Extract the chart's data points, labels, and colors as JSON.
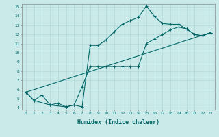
{
  "xlabel": "Humidex (Indice chaleur)",
  "bg_color": "#caeaea",
  "line_color": "#006666",
  "grid_color": "#b0d8d8",
  "xlim": [
    -0.5,
    23.5
  ],
  "ylim": [
    3.8,
    15.3
  ],
  "yticks": [
    4,
    5,
    6,
    7,
    8,
    9,
    10,
    11,
    12,
    13,
    14,
    15
  ],
  "xticks": [
    0,
    1,
    2,
    3,
    4,
    5,
    6,
    7,
    8,
    9,
    10,
    11,
    12,
    13,
    14,
    15,
    16,
    17,
    18,
    19,
    20,
    21,
    22,
    23
  ],
  "line1_x": [
    0,
    1,
    2,
    3,
    4,
    5,
    6,
    7,
    8,
    9,
    10,
    11,
    12,
    13,
    14,
    15,
    16,
    17,
    18,
    19,
    20,
    21,
    22,
    23
  ],
  "line1_y": [
    5.7,
    4.8,
    5.4,
    4.3,
    4.5,
    4.1,
    4.3,
    4.1,
    10.8,
    10.8,
    11.4,
    12.3,
    13.1,
    13.5,
    13.85,
    15.1,
    13.95,
    13.2,
    13.1,
    13.1,
    12.6,
    12.0,
    11.85,
    12.2
  ],
  "line2_x": [
    0,
    1,
    3,
    5,
    6,
    7,
    8,
    9,
    10,
    11,
    12,
    13,
    14,
    15,
    16,
    17,
    18,
    19,
    20,
    21,
    22,
    23
  ],
  "line2_y": [
    5.7,
    4.8,
    4.3,
    4.1,
    4.3,
    6.3,
    8.5,
    8.5,
    8.5,
    8.5,
    8.5,
    8.5,
    8.5,
    11.0,
    11.5,
    12.0,
    12.5,
    12.8,
    12.6,
    12.0,
    11.85,
    12.2
  ],
  "line3_x": [
    0,
    23
  ],
  "line3_y": [
    5.7,
    12.2
  ]
}
